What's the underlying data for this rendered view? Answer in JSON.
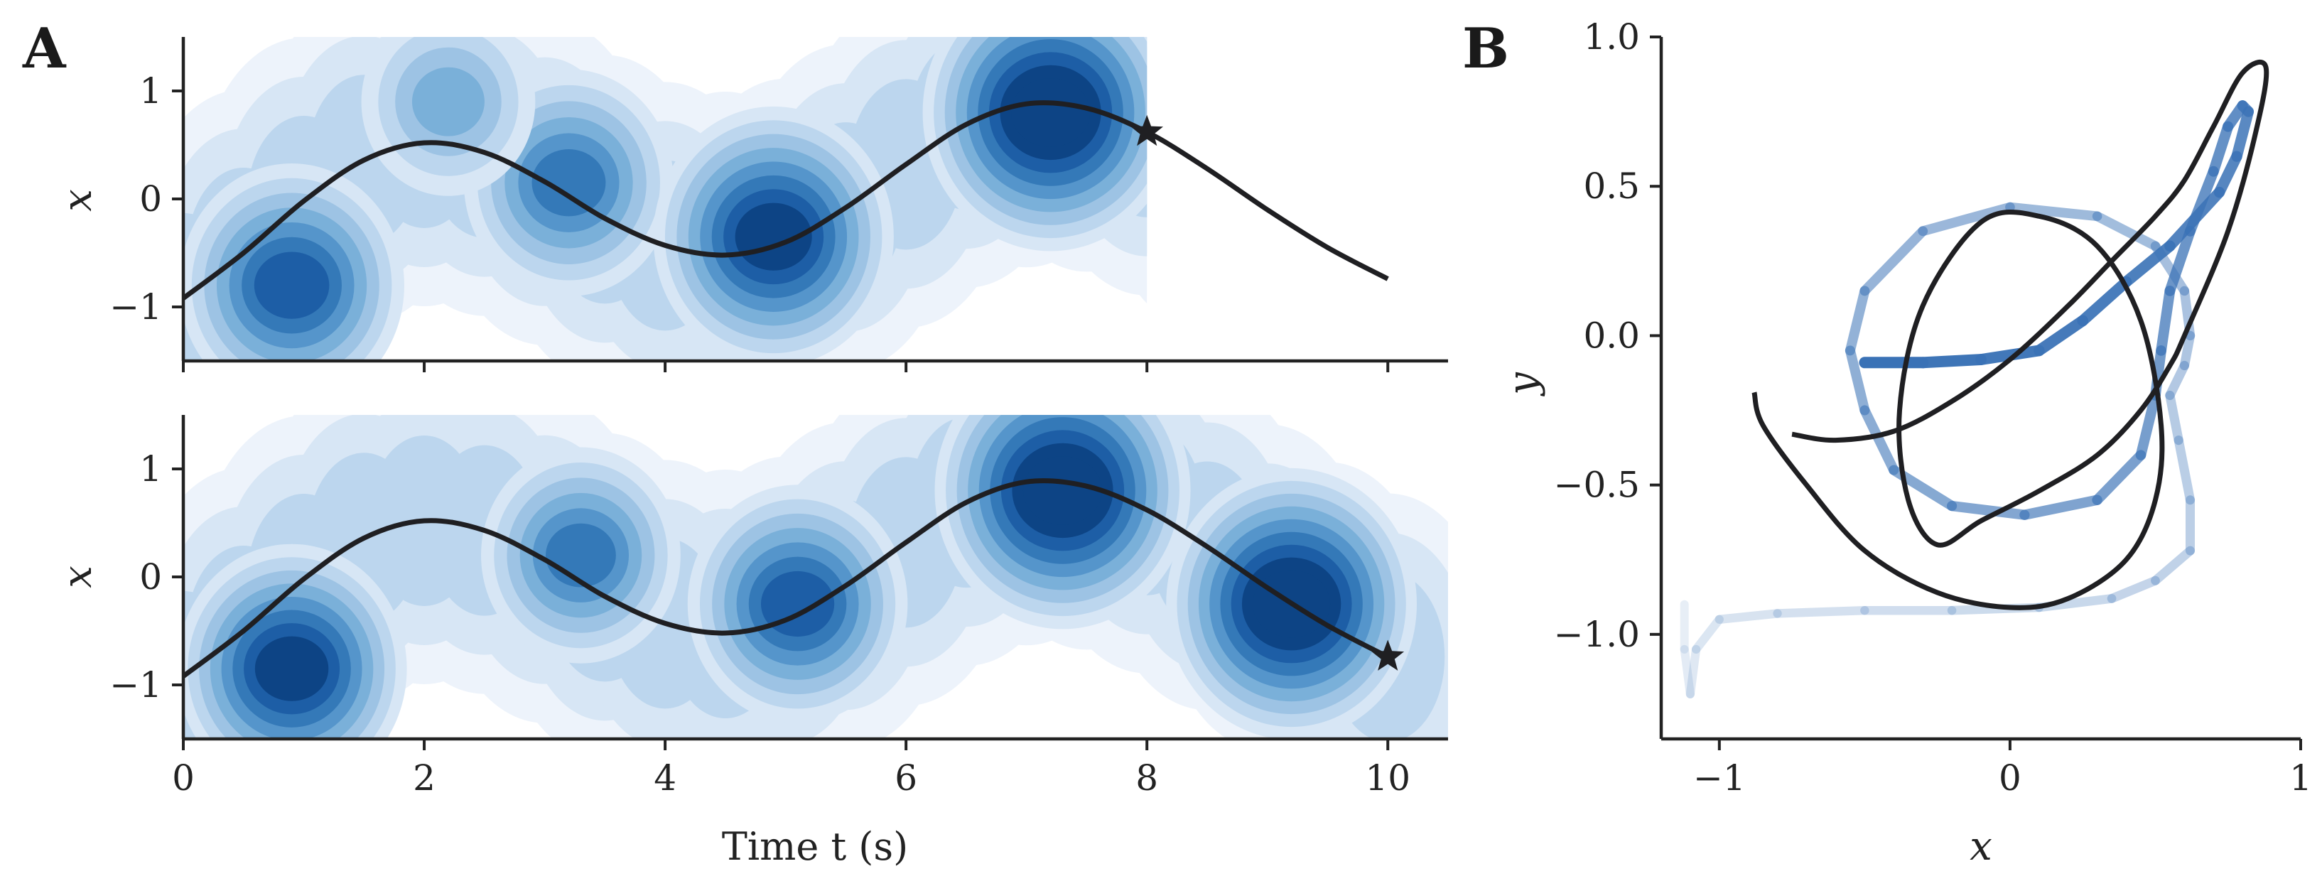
{
  "figure": {
    "colors": {
      "black_curve": "#1f1f22",
      "density_levels": [
        "#edf3fb",
        "#d7e6f5",
        "#bcd6ee",
        "#9dc3e4",
        "#7ab0d9",
        "#5595cb",
        "#3479b8",
        "#1d5ea6",
        "#0d4485"
      ],
      "blue_trajectory": "#3a72b6"
    }
  },
  "chart_data": [
    {
      "panel": "A",
      "type": "line+density",
      "subplot": "A-top",
      "panel_label": "A",
      "xlabel": "",
      "ylabel": "x",
      "xlim": [
        0,
        10.5
      ],
      "ylim": [
        -1.5,
        1.5
      ],
      "yticks": [
        -1,
        0,
        1
      ],
      "ytick_labels": [
        "−1",
        "0",
        "1"
      ],
      "xticks": [
        0,
        2,
        4,
        6,
        8,
        10
      ],
      "xtick_labels_visible": false,
      "density_cutoff_t": 8.0,
      "curve": {
        "description": "black trajectory x(t)",
        "t": [
          0,
          0.5,
          1,
          1.5,
          2,
          2.5,
          3,
          3.5,
          4,
          4.5,
          5,
          5.5,
          6,
          6.5,
          7,
          7.5,
          8,
          8.5,
          9,
          9.5,
          10
        ],
        "x": [
          -0.92,
          -0.5,
          -0.02,
          0.36,
          0.52,
          0.43,
          0.16,
          -0.18,
          -0.43,
          -0.52,
          -0.4,
          -0.08,
          0.32,
          0.69,
          0.88,
          0.84,
          0.62,
          0.28,
          -0.1,
          -0.45,
          -0.74
        ]
      },
      "marker": {
        "symbol": "star",
        "t": 8.0,
        "x": 0.62
      },
      "density_modes": [
        {
          "t": 0.9,
          "x": -0.8,
          "amp": 0.7
        },
        {
          "t": 3.2,
          "x": 0.15,
          "amp": 0.55
        },
        {
          "t": 4.9,
          "x": -0.35,
          "amp": 0.85
        },
        {
          "t": 7.2,
          "x": 0.8,
          "amp": 1.0
        },
        {
          "t": 2.2,
          "x": 0.9,
          "amp": 0.2
        }
      ]
    },
    {
      "panel": "A",
      "type": "line+density",
      "subplot": "A-bottom",
      "xlabel": "Time t (s)",
      "ylabel": "x",
      "xlim": [
        0,
        10.5
      ],
      "ylim": [
        -1.5,
        1.5
      ],
      "yticks": [
        -1,
        0,
        1
      ],
      "ytick_labels": [
        "−1",
        "0",
        "1"
      ],
      "xticks": [
        0,
        2,
        4,
        6,
        8,
        10
      ],
      "xtick_labels": [
        "0",
        "2",
        "4",
        "6",
        "8",
        "10"
      ],
      "density_cutoff_t": 10.5,
      "curve": {
        "description": "black trajectory x(t)",
        "t": [
          0,
          0.5,
          1,
          1.5,
          2,
          2.5,
          3,
          3.5,
          4,
          4.5,
          5,
          5.5,
          6,
          6.5,
          7,
          7.5,
          8,
          8.5,
          9,
          9.5,
          10
        ],
        "x": [
          -0.92,
          -0.5,
          -0.02,
          0.36,
          0.52,
          0.43,
          0.16,
          -0.18,
          -0.43,
          -0.52,
          -0.4,
          -0.08,
          0.32,
          0.69,
          0.88,
          0.84,
          0.62,
          0.28,
          -0.1,
          -0.45,
          -0.74
        ]
      },
      "marker": {
        "symbol": "star",
        "t": 10.0,
        "x": -0.74
      },
      "density_modes": [
        {
          "t": 0.9,
          "x": -0.85,
          "amp": 0.75
        },
        {
          "t": 3.3,
          "x": 0.2,
          "amp": 0.45
        },
        {
          "t": 5.1,
          "x": -0.25,
          "amp": 0.65
        },
        {
          "t": 7.3,
          "x": 0.8,
          "amp": 1.0
        },
        {
          "t": 9.2,
          "x": -0.25,
          "amp": 0.95
        }
      ]
    },
    {
      "panel": "B",
      "type": "line",
      "panel_label": "B",
      "xlabel": "x",
      "ylabel": "y",
      "xlim": [
        -1.2,
        1.0
      ],
      "ylim": [
        -1.35,
        1.0
      ],
      "xticks": [
        -1,
        0,
        1
      ],
      "xtick_labels": [
        "−1",
        "0",
        "1"
      ],
      "yticks": [
        -1.0,
        -0.5,
        0.0,
        0.5,
        1.0
      ],
      "ytick_labels": [
        "−1.0",
        "−0.5",
        "0.0",
        "0.5",
        "1.0"
      ],
      "series": [
        {
          "name": "reference trajectory",
          "style": "black solid",
          "x": [
            -0.75,
            -0.6,
            -0.4,
            -0.2,
            0.0,
            0.2,
            0.35,
            0.5,
            0.6,
            0.7,
            0.8,
            0.88,
            0.85,
            0.75,
            0.6,
            0.55,
            0.45,
            0.3,
            0.1,
            -0.1,
            -0.25,
            -0.35,
            -0.38,
            -0.3,
            -0.1,
            0.1,
            0.3,
            0.45,
            0.52,
            0.5,
            0.4,
            0.2,
            0.0,
            -0.25,
            -0.5,
            -0.7,
            -0.85,
            -0.88
          ],
          "y": [
            -0.33,
            -0.35,
            -0.32,
            -0.22,
            -0.08,
            0.1,
            0.25,
            0.4,
            0.52,
            0.7,
            0.88,
            0.9,
            0.7,
            0.35,
            0.0,
            -0.1,
            -0.25,
            -0.4,
            -0.52,
            -0.62,
            -0.7,
            -0.55,
            -0.25,
            0.1,
            0.38,
            0.4,
            0.3,
            0.05,
            -0.3,
            -0.55,
            -0.75,
            -0.88,
            -0.91,
            -0.86,
            -0.72,
            -0.5,
            -0.3,
            -0.19
          ]
        },
        {
          "name": "sampled trajectory",
          "style": "blue fading",
          "x": [
            -1.12,
            -1.12,
            -1.1,
            -1.08,
            -1.0,
            -0.8,
            -0.5,
            -0.2,
            0.1,
            0.35,
            0.5,
            0.62,
            0.62,
            0.58,
            0.55,
            0.6,
            0.62,
            0.6,
            0.5,
            0.3,
            0.0,
            -0.3,
            -0.5,
            -0.55,
            -0.5,
            -0.4,
            -0.2,
            0.05,
            0.3,
            0.45,
            0.5,
            0.52,
            0.55,
            0.62,
            0.7,
            0.75,
            0.8,
            0.82,
            0.78,
            0.72,
            0.55,
            0.4,
            0.25,
            0.1,
            -0.1,
            -0.3,
            -0.5
          ],
          "y": [
            -0.9,
            -1.05,
            -1.2,
            -1.05,
            -0.95,
            -0.93,
            -0.92,
            -0.92,
            -0.91,
            -0.88,
            -0.82,
            -0.72,
            -0.55,
            -0.35,
            -0.2,
            -0.1,
            0.0,
            0.15,
            0.3,
            0.4,
            0.43,
            0.35,
            0.15,
            -0.05,
            -0.25,
            -0.45,
            -0.57,
            -0.6,
            -0.55,
            -0.4,
            -0.2,
            -0.05,
            0.15,
            0.35,
            0.55,
            0.7,
            0.77,
            0.75,
            0.6,
            0.48,
            0.3,
            0.18,
            0.05,
            -0.05,
            -0.08,
            -0.09,
            -0.09
          ]
        }
      ]
    }
  ]
}
